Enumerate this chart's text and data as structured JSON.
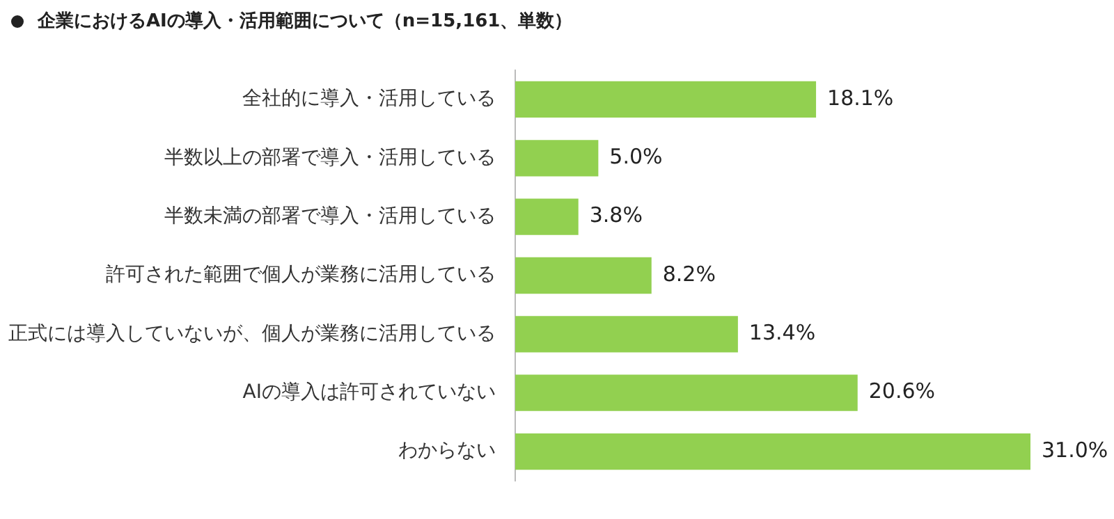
{
  "chart_data": {
    "type": "bar",
    "orientation": "horizontal",
    "title": "企業におけるAIの導入・活用範囲について（n=15,161、単数）",
    "categories": [
      "全社的に導入・活用している",
      "半数以上の部署で導入・活用している",
      "半数未満の部署で導入・活用している",
      "許可された範囲で個人が業務に活用している",
      "正式には導入していないが、個人が業務に活用している",
      "AIの導入は許可されていない",
      "わからない"
    ],
    "values": [
      18.1,
      5.0,
      3.8,
      8.2,
      13.4,
      20.6,
      31.0
    ],
    "value_labels": [
      "18.1%",
      "5.0%",
      "3.8%",
      "8.2%",
      "13.4%",
      "20.6%",
      "31.0%"
    ],
    "color": "#92d050"
  }
}
